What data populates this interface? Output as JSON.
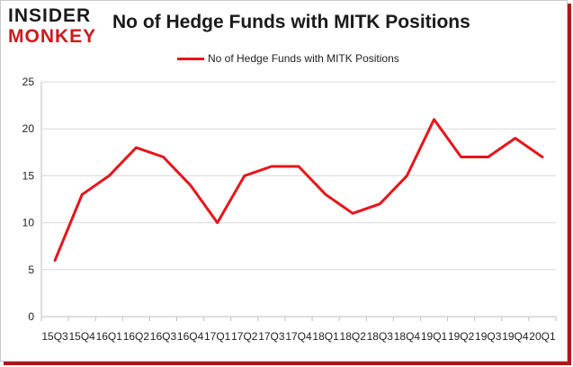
{
  "logo": {
    "line1": "INSIDER",
    "line2": "MONKEY"
  },
  "chart_data": {
    "type": "line",
    "title": "No of Hedge Funds with MITK Positions",
    "xlabel": "",
    "ylabel": "",
    "categories": [
      "15Q3",
      "15Q4",
      "16Q1",
      "16Q2",
      "16Q3",
      "16Q4",
      "17Q1",
      "17Q2",
      "17Q3",
      "17Q4",
      "18Q1",
      "18Q2",
      "18Q3",
      "18Q4",
      "19Q1",
      "19Q2",
      "19Q3",
      "19Q4",
      "20Q1"
    ],
    "series": [
      {
        "name": "No of Hedge Funds with MITK Positions",
        "values": [
          6,
          13,
          15,
          18,
          17,
          14,
          10,
          15,
          16,
          16,
          13,
          11,
          12,
          15,
          21,
          17,
          17,
          19,
          17
        ]
      }
    ],
    "ylim": [
      0,
      25
    ],
    "yticks": [
      0,
      5,
      10,
      15,
      20,
      25
    ],
    "grid": true,
    "legend_position": "top",
    "colors": {
      "line": "#e8141a",
      "grid": "#d9d9d9",
      "axis": "#bfbfbf"
    }
  }
}
